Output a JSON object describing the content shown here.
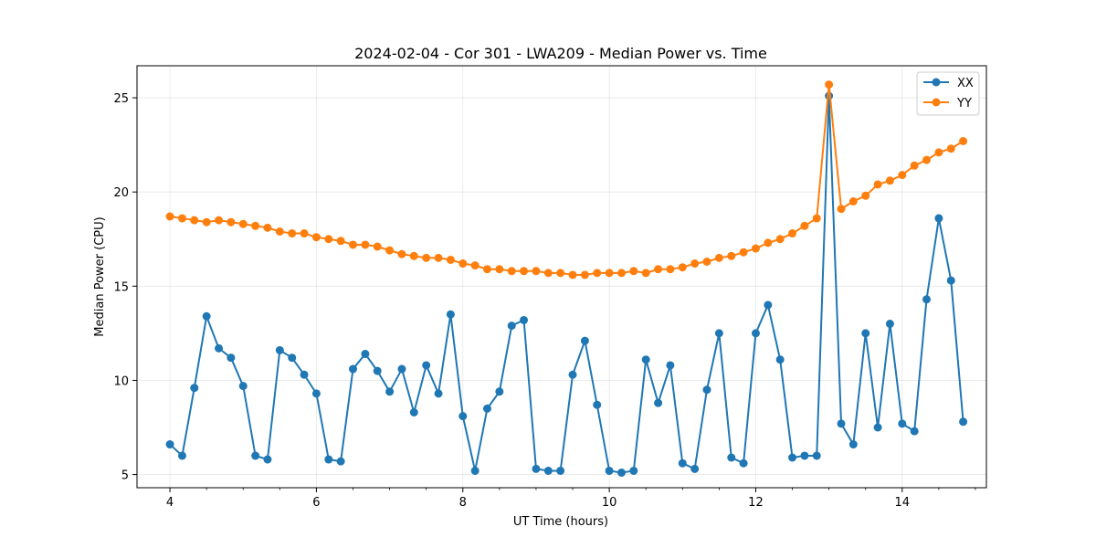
{
  "chart_data": {
    "type": "line",
    "title": "2024-02-04 - Cor 301 - LWA209 - Median Power vs. Time",
    "xlabel": "UT Time (hours)",
    "ylabel": "Median Power (CPU)",
    "xlim": [
      3.55,
      15.15
    ],
    "ylim": [
      4.3,
      26.7
    ],
    "xticks": [
      4,
      6,
      8,
      10,
      12,
      14
    ],
    "xtick_labels": [
      "4",
      "6",
      "8",
      "10",
      "12",
      "14"
    ],
    "yticks": [
      5,
      10,
      15,
      20,
      25
    ],
    "ytick_labels": [
      "5",
      "10",
      "15",
      "20",
      "25"
    ],
    "grid": true,
    "legend_position": "top-right",
    "x": [
      4.0,
      4.167,
      4.333,
      4.5,
      4.667,
      4.833,
      5.0,
      5.167,
      5.333,
      5.5,
      5.667,
      5.833,
      6.0,
      6.167,
      6.333,
      6.5,
      6.667,
      6.833,
      7.0,
      7.167,
      7.333,
      7.5,
      7.667,
      7.833,
      8.0,
      8.167,
      8.333,
      8.5,
      8.667,
      8.833,
      9.0,
      9.167,
      9.333,
      9.5,
      9.667,
      9.833,
      10.0,
      10.167,
      10.333,
      10.5,
      10.667,
      10.833,
      11.0,
      11.167,
      11.333,
      11.5,
      11.667,
      11.833,
      12.0,
      12.167,
      12.333,
      12.5,
      12.667,
      12.833,
      13.0,
      13.167,
      13.333,
      13.5,
      13.667,
      13.833,
      14.0,
      14.167,
      14.333,
      14.5,
      14.667,
      14.833
    ],
    "series": [
      {
        "name": "XX",
        "color": "#1f77b4",
        "values": [
          6.6,
          6.0,
          9.6,
          13.4,
          11.7,
          11.2,
          9.7,
          6.0,
          5.8,
          11.6,
          11.2,
          10.3,
          9.3,
          5.8,
          5.7,
          10.6,
          11.4,
          10.5,
          9.4,
          10.6,
          8.3,
          10.8,
          9.3,
          13.5,
          8.1,
          5.2,
          8.5,
          9.4,
          12.9,
          13.2,
          5.3,
          5.2,
          5.2,
          10.3,
          12.1,
          8.7,
          5.2,
          5.1,
          5.2,
          11.1,
          8.8,
          10.8,
          5.6,
          5.3,
          9.5,
          12.5,
          5.9,
          5.6,
          12.5,
          14.0,
          11.1,
          5.9,
          6.0,
          6.0,
          25.1,
          7.7,
          6.6,
          12.5,
          7.5,
          13.0,
          7.7,
          7.3,
          14.3,
          18.6,
          15.3,
          7.8
        ]
      },
      {
        "name": "YY",
        "color": "#ff7f0e",
        "values": [
          18.7,
          18.6,
          18.5,
          18.4,
          18.5,
          18.4,
          18.3,
          18.2,
          18.1,
          17.9,
          17.8,
          17.8,
          17.6,
          17.5,
          17.4,
          17.2,
          17.2,
          17.1,
          16.9,
          16.7,
          16.6,
          16.5,
          16.5,
          16.4,
          16.2,
          16.1,
          15.9,
          15.9,
          15.8,
          15.8,
          15.8,
          15.7,
          15.7,
          15.6,
          15.6,
          15.7,
          15.7,
          15.7,
          15.8,
          15.7,
          15.9,
          15.9,
          16.0,
          16.2,
          16.3,
          16.5,
          16.6,
          16.8,
          17.0,
          17.3,
          17.5,
          17.8,
          18.2,
          18.6,
          25.7,
          19.1,
          19.5,
          19.8,
          20.4,
          20.6,
          20.9,
          21.4,
          21.7,
          22.1,
          22.3,
          22.7
        ]
      }
    ]
  }
}
